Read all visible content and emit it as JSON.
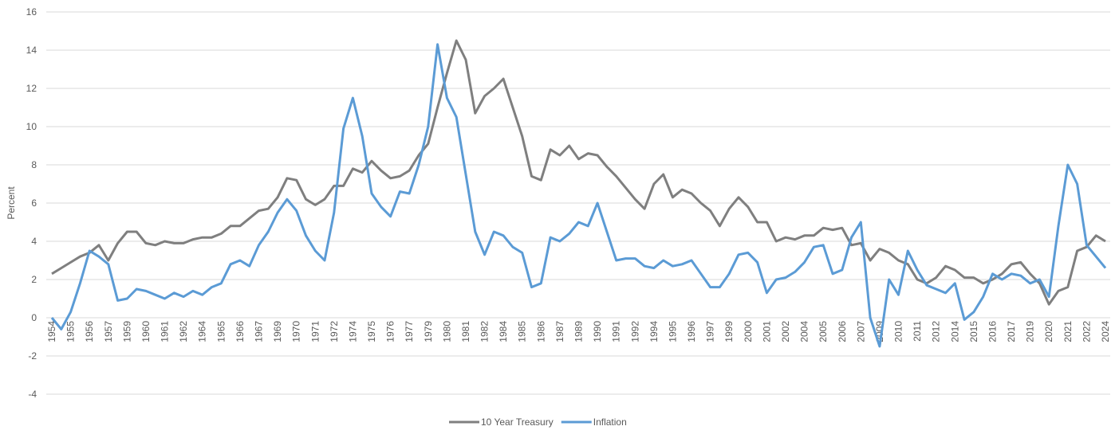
{
  "chart_data": {
    "type": "line",
    "y_label": "Percent",
    "categories": [
      "1954",
      null,
      "1955",
      null,
      "1956",
      null,
      "1957",
      null,
      "1959",
      null,
      "1960",
      null,
      "1961",
      null,
      "1962",
      null,
      "1964",
      null,
      "1965",
      null,
      "1966",
      null,
      "1967",
      null,
      "1969",
      null,
      "1970",
      null,
      "1971",
      null,
      "1972",
      null,
      "1974",
      null,
      "1975",
      null,
      "1976",
      null,
      "1977",
      null,
      "1979",
      null,
      "1980",
      null,
      "1981",
      null,
      "1982",
      null,
      "1984",
      null,
      "1985",
      null,
      "1986",
      null,
      "1987",
      null,
      "1989",
      null,
      "1990",
      null,
      "1991",
      null,
      "1992",
      null,
      "1994",
      null,
      "1995",
      null,
      "1996",
      null,
      "1997",
      null,
      "1999",
      null,
      "2000",
      null,
      "2001",
      null,
      "2002",
      null,
      "2004",
      null,
      "2005",
      null,
      "2006",
      null,
      "2007",
      null,
      "2009",
      null,
      "2010",
      null,
      "2011",
      null,
      "2012",
      null,
      "2014",
      null,
      "2015",
      null,
      "2016",
      null,
      "2017",
      null,
      "2019",
      null,
      "2020",
      null,
      "2021",
      null,
      "2022",
      null,
      "2024"
    ],
    "series": [
      {
        "name": "10 Year Treasury",
        "color": "#7f7f7f",
        "values": [
          2.3,
          2.6,
          2.9,
          3.2,
          3.4,
          3.8,
          3.0,
          3.9,
          4.5,
          4.5,
          3.9,
          3.8,
          4.0,
          3.9,
          3.9,
          4.1,
          4.2,
          4.2,
          4.4,
          4.8,
          4.8,
          5.2,
          5.6,
          5.7,
          6.3,
          7.3,
          7.2,
          6.2,
          5.9,
          6.2,
          6.9,
          6.9,
          7.8,
          7.6,
          8.2,
          7.7,
          7.3,
          7.4,
          7.7,
          8.5,
          9.1,
          11.0,
          12.8,
          14.5,
          13.5,
          10.7,
          11.6,
          12.0,
          12.5,
          11.0,
          9.5,
          7.4,
          7.2,
          8.8,
          8.5,
          9.0,
          8.3,
          8.6,
          8.5,
          7.9,
          7.4,
          6.8,
          6.2,
          5.7,
          7.0,
          7.5,
          6.3,
          6.7,
          6.5,
          6.0,
          5.6,
          4.8,
          5.7,
          6.3,
          5.8,
          5.0,
          5.0,
          4.0,
          4.2,
          4.1,
          4.3,
          4.3,
          4.7,
          4.6,
          4.7,
          3.8,
          3.9,
          3.0,
          3.6,
          3.4,
          3.0,
          2.8,
          2.0,
          1.8,
          2.1,
          2.7,
          2.5,
          2.1,
          2.1,
          1.8,
          2.0,
          2.3,
          2.8,
          2.9,
          2.3,
          1.8,
          0.7,
          1.4,
          1.6,
          3.5,
          3.7,
          4.3,
          4.0
        ]
      },
      {
        "name": "Inflation",
        "color": "#5b9bd5",
        "values": [
          0.0,
          -0.6,
          0.3,
          1.8,
          3.5,
          3.2,
          2.8,
          0.9,
          1.0,
          1.5,
          1.4,
          1.2,
          1.0,
          1.3,
          1.1,
          1.4,
          1.2,
          1.6,
          1.8,
          2.8,
          3.0,
          2.7,
          3.8,
          4.5,
          5.5,
          6.2,
          5.6,
          4.3,
          3.5,
          3.0,
          5.5,
          9.9,
          11.5,
          9.5,
          6.5,
          5.8,
          5.3,
          6.6,
          6.5,
          8.0,
          10.0,
          14.3,
          11.5,
          10.5,
          7.5,
          4.5,
          3.3,
          4.5,
          4.3,
          3.7,
          3.4,
          1.6,
          1.8,
          4.2,
          4.0,
          4.4,
          5.0,
          4.8,
          6.0,
          4.5,
          3.0,
          3.1,
          3.1,
          2.7,
          2.6,
          3.0,
          2.7,
          2.8,
          3.0,
          2.3,
          1.6,
          1.6,
          2.3,
          3.3,
          3.4,
          2.9,
          1.3,
          2.0,
          2.1,
          2.4,
          2.9,
          3.7,
          3.8,
          2.3,
          2.5,
          4.2,
          5.0,
          0.0,
          -1.5,
          2.0,
          1.2,
          3.5,
          2.5,
          1.7,
          1.5,
          1.3,
          1.8,
          -0.1,
          0.3,
          1.1,
          2.3,
          2.0,
          2.3,
          2.2,
          1.8,
          2.0,
          1.1,
          4.8,
          8.0,
          7.0,
          3.8,
          3.2,
          2.6
        ]
      }
    ],
    "ylim": [
      -4,
      16
    ],
    "yticks": [
      -4,
      -2,
      0,
      2,
      4,
      6,
      8,
      10,
      12,
      14,
      16
    ],
    "grid": true,
    "legend": "bottom"
  }
}
